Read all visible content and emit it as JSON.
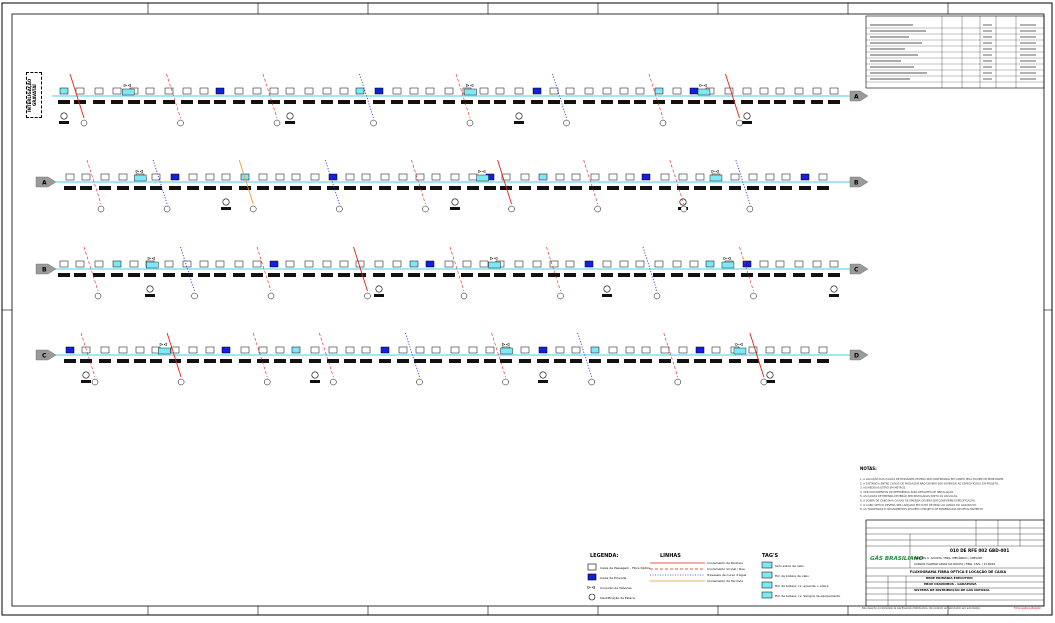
{
  "side_label": {
    "text": "INTERLIGAÇÃO\nGRAVATAÍ"
  },
  "colors": {
    "main_line": "#6fd8f0",
    "red": "#e0201a",
    "blue": "#1e2ee0",
    "orange": "#f0941a",
    "box_blue": "#1320e0",
    "box_cyan": "#7ee8f4"
  },
  "rows": [
    {
      "start": "",
      "end": "A"
    },
    {
      "start": "A",
      "end": "B"
    },
    {
      "start": "B",
      "end": "C"
    },
    {
      "start": "C",
      "end": "D"
    }
  ],
  "legend": {
    "title": "LEGENDA:",
    "items": [
      "Caixa de Passagem - Fibra Óptica",
      "Caixa de Emenda",
      "Conjunto de Válvulas",
      "Identificação de Estaca"
    ]
  },
  "linhas": {
    "title": "LINHAS",
    "items": [
      {
        "label": "Cruzamento de Rodovia",
        "color": "#e0201a",
        "style": "solid"
      },
      {
        "label": "Cruzamento Vicinal / Rua",
        "color": "#e0201a",
        "style": "dashed"
      },
      {
        "label": "Travessia de Curso d'água",
        "color": "#1e2ee0",
        "style": "dotted"
      },
      {
        "label": "Cruzamento de Ferrovia",
        "color": "#f0941a",
        "style": "solid"
      }
    ]
  },
  "tags": {
    "title": "TAG'S",
    "items": [
      "Sem sobra de cabo",
      "Fim de bobina de cabo",
      "Fim de bobina, cx. emenda + sobra",
      "Fim de bobina, cx. Sangria de equipamento"
    ]
  },
  "notes": {
    "title": "NOTAS:",
    "lines": [
      "1. A LOCAÇÃO DAS CAIXAS DE PASSAGEM DEVERÁ SER CONFIRMADA EM CAMPO PELA EQUIPE DE MONTAGEM.",
      "2. A DISTÂNCIA ENTRE CAIXAS DE PASSAGEM NÃO DEVERÁ SER SUPERIOR AO ESPECIFICADO EM PROJETO.",
      "3. AS MEDIDAS ESTÃO EM METROS.",
      "4. VER DOCUMENTOS DE REFERÊNCIA PARA DETALHES DE INSTALAÇÃO.",
      "5. AS CAIXAS DE EMENDA DEVERÃO SER INSTALADAS JUNTO ÀS VÁLVULAS.",
      "6. A SOBRA DE CABO NAS CAIXAS DE EMENDA DEVERÁ SER CONFORME ESPECIFICAÇÃO.",
      "7. O CABO ÓPTICO DEVERÁ SER LANÇADO EM DUTO DE PEAD AO LONGO DO GASODUTO.",
      "8. AS TRAVESSIAS E CRUZAMENTOS SEGUEM O PROJETO DE ENGENHARIA DE DETALHAMENTO."
    ]
  },
  "title_block": {
    "company": "GÁS BRASILIANO",
    "doc_number": "010 DE RFE 002 GBD-001",
    "responsible": "MARCOS A. ACOSTA / ENG. MECÂNICO / CREA/SP",
    "designer": "CARLOS VALERIO ARIAS DA ROCHA / ENG. CIVIL / 21.8934",
    "title_1": "FLUXOGRAMA FIBRA ÓPTICA E LOCAÇÃO DE CAIXA",
    "title_2": "REDE PRIMÁRIA EXECUTIVO",
    "title_3": "EBOV CRAVINHOS - GARAPIAVA",
    "title_4": "SISTEMA DE DISTRIBUIÇÃO DE GÁS NATURAL",
    "footer_left": "Este desenho é propriedade da Gás Brasiliano Distribuidora, não podendo ser reproduzido sem autorização.",
    "footer_right": "Folha sujeita a alteração"
  }
}
